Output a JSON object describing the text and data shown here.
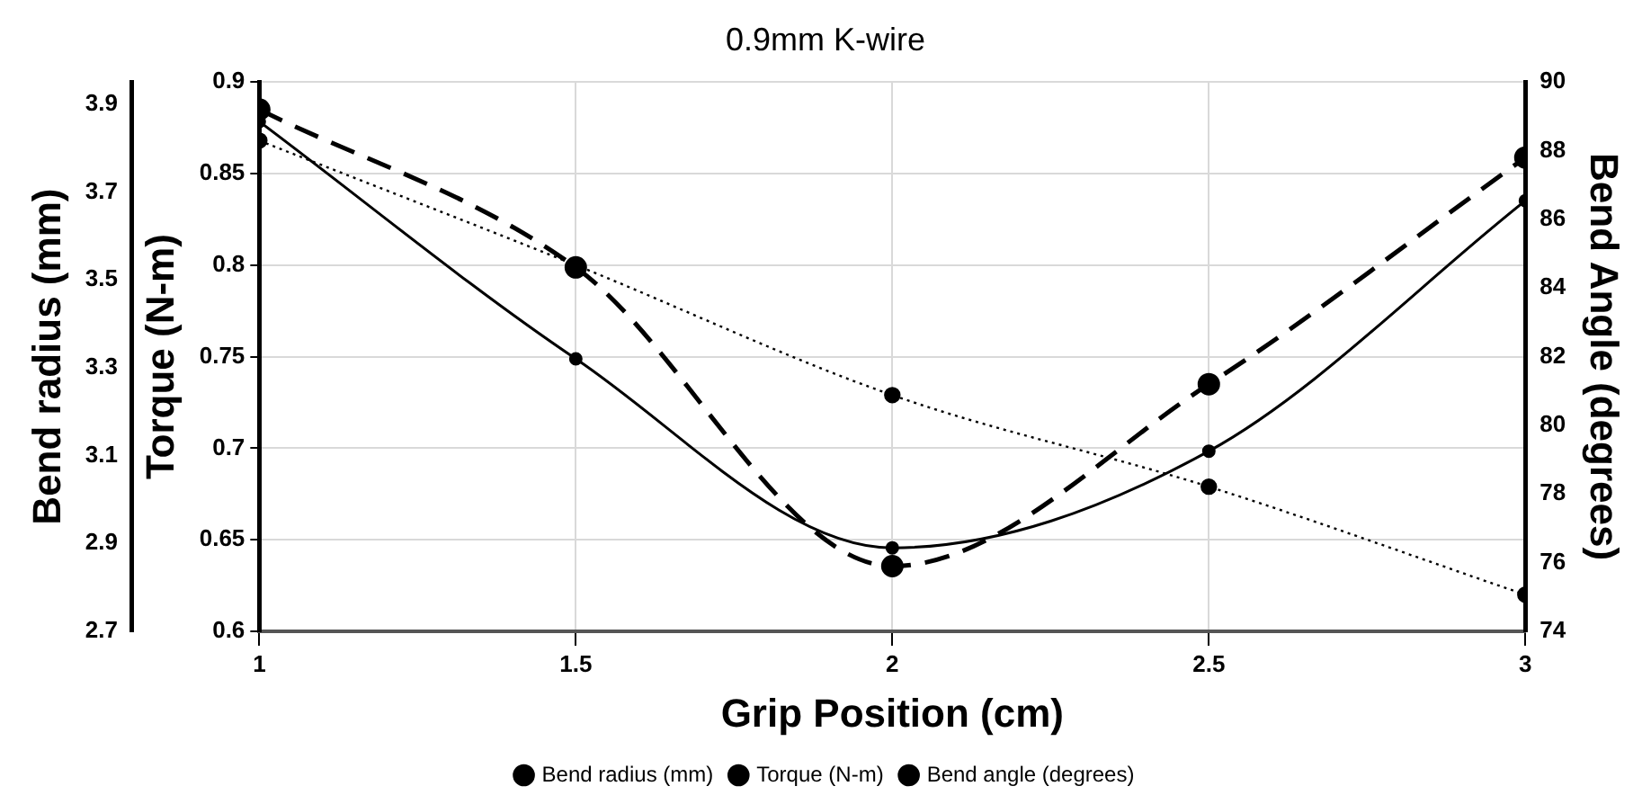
{
  "chart_data": {
    "type": "line",
    "title": "0.9mm K-wire",
    "xlabel": "Grip Position (cm)",
    "ylabel": "Torque (N-m)",
    "y2label": "Bend Angle (degrees)",
    "y3label": "Bend radius (mm)",
    "x": [
      1,
      1.5,
      2,
      2.5,
      3
    ],
    "series": [
      {
        "name": "Bend radius (mm)",
        "color": "#000000",
        "axis": "y3",
        "line_style": "solid",
        "values": [
          3.86,
          3.32,
          2.89,
          3.11,
          3.68
        ]
      },
      {
        "name": "Torque (N-m)",
        "color": "#000000",
        "line_style": "dotted",
        "values": [
          0.868,
          0.8,
          0.729,
          0.679,
          0.62
        ]
      },
      {
        "name": "Bend angle (degrees)",
        "color": "#000000",
        "axis": "y2",
        "line_style": "dashed",
        "values": [
          89.2,
          84.6,
          75.9,
          81.2,
          87.8
        ]
      }
    ],
    "xlim": [
      1,
      3
    ],
    "xticks": [
      1,
      1.5,
      2,
      2.5,
      3
    ],
    "ylim": [
      0.6,
      0.9
    ],
    "yticks": [
      0.6,
      0.65,
      0.7,
      0.75,
      0.8,
      0.85,
      0.9
    ],
    "y2lim": [
      74,
      90
    ],
    "y2ticks": [
      74,
      76,
      78,
      80,
      82,
      84,
      86,
      88,
      90
    ],
    "y3lim": [
      2.7,
      3.95
    ],
    "y3ticks": [
      2.7,
      2.9,
      3.1,
      3.3,
      3.5,
      3.7,
      3.9
    ],
    "grid": true,
    "legend": "bottom",
    "marker": "circle"
  }
}
